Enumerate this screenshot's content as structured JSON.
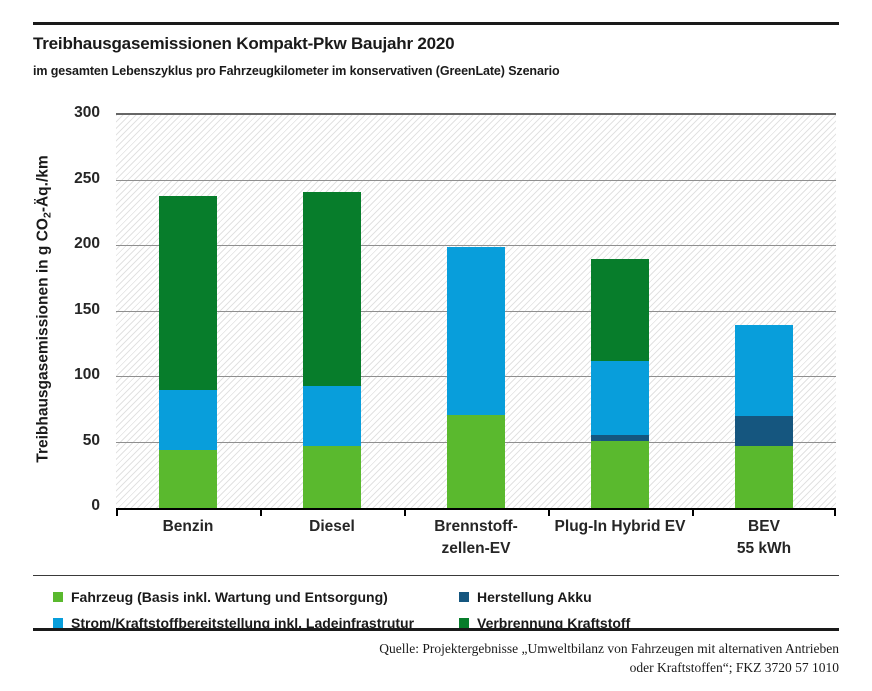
{
  "header": {
    "title": "Treibhausgasemissionen Kompakt-Pkw Baujahr 2020",
    "subtitle": "im gesamten Lebenszyklus pro Fahrzeugkilometer im konservativen (GreenLate) Szenario"
  },
  "chart_data": {
    "type": "bar",
    "subtype": "stacked",
    "unit": "g CO2-Äq./km",
    "ylabel": {
      "pre": "Treibhausgasemissionen in g CO",
      "sub": "2",
      "post": "-Äq./km"
    },
    "ylim": [
      0,
      300
    ],
    "yticks": [
      0,
      50,
      100,
      150,
      200,
      250,
      300
    ],
    "grid": "horizontal",
    "plot_background": "diagonal-hatch",
    "legend_position": "bottom",
    "categories": [
      {
        "lines": [
          "Benzin"
        ]
      },
      {
        "lines": [
          "Diesel"
        ]
      },
      {
        "lines": [
          "Brennstoff-",
          "zellen-EV"
        ]
      },
      {
        "lines": [
          "Plug-In Hybrid EV"
        ]
      },
      {
        "lines": [
          "BEV",
          "55 kWh"
        ]
      }
    ],
    "series": [
      {
        "name": "Fahrzeug (Basis inkl. Wartung und Entsorgung)",
        "color": "#5ab92e",
        "values": [
          44,
          47,
          71,
          51,
          47
        ]
      },
      {
        "name": "Herstellung Akku",
        "color": "#15567f",
        "values": [
          0,
          0,
          0,
          5,
          23
        ]
      },
      {
        "name": "Strom/Kraftstoffbereitstellung inkl. Ladeinfrastrutur",
        "color": "#089edb",
        "values": [
          46,
          46,
          128,
          56,
          70
        ]
      },
      {
        "name": "Verbrennung Kraftstoff",
        "color": "#077d2b",
        "values": [
          148,
          148,
          0,
          78,
          0
        ]
      }
    ],
    "totals": [
      238,
      241,
      199,
      190,
      140
    ]
  },
  "source": {
    "line1": "Quelle: Projektergebnisse „Umweltbilanz von Fahrzeugen mit alternativen Antrieben",
    "line2": "oder Kraftstoffen“; FKZ 3720 57 1010"
  }
}
